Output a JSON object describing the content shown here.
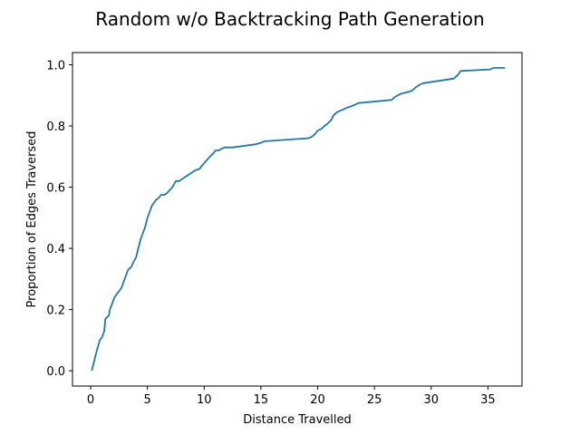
{
  "chart_data": {
    "type": "line",
    "title": "Random w/o Backtracking Path Generation",
    "xlabel": "Distance Travelled",
    "ylabel": "Proportion of Edges Traversed",
    "xlim": [
      -1.6,
      38.0
    ],
    "ylim": [
      -0.05,
      1.04
    ],
    "xticks": [
      0,
      5,
      10,
      15,
      20,
      25,
      30,
      35
    ],
    "xtick_labels": [
      "0",
      "5",
      "10",
      "15",
      "20",
      "25",
      "30",
      "35"
    ],
    "yticks": [
      0.0,
      0.2,
      0.4,
      0.6,
      0.8,
      1.0
    ],
    "ytick_labels": [
      "0.0",
      "0.2",
      "0.4",
      "0.6",
      "0.8",
      "1.0"
    ],
    "grid": false,
    "legend": "none",
    "series": [
      {
        "color": "#1f77b4",
        "x": [
          0.1,
          0.3,
          0.5,
          0.8,
          1.0,
          1.2,
          1.3,
          1.6,
          1.7,
          1.8,
          2.0,
          2.1,
          2.3,
          2.5,
          2.7,
          3.0,
          3.2,
          3.3,
          3.6,
          3.7,
          4.0,
          4.2,
          4.4,
          4.6,
          4.8,
          5.0,
          5.2,
          5.4,
          5.6,
          5.8,
          6.0,
          6.2,
          6.5,
          6.7,
          7.2,
          7.5,
          7.8,
          8.0,
          8.2,
          9.0,
          9.2,
          9.6,
          9.8,
          10.5,
          10.8,
          11.0,
          11.3,
          11.5,
          11.8,
          12.5,
          14.5,
          15.0,
          15.3,
          19.2,
          19.5,
          19.8,
          20.0,
          20.3,
          20.6,
          20.8,
          21.2,
          21.4,
          21.7,
          22.0,
          22.3,
          22.6,
          23.0,
          23.3,
          23.6,
          26.5,
          26.8,
          27.3,
          28.3,
          28.6,
          29.0,
          29.3,
          32.0,
          32.3,
          32.6,
          35.2,
          35.5,
          36.5
        ],
        "y": [
          0.0,
          0.03,
          0.06,
          0.1,
          0.11,
          0.13,
          0.17,
          0.18,
          0.2,
          0.21,
          0.23,
          0.24,
          0.25,
          0.26,
          0.27,
          0.3,
          0.32,
          0.33,
          0.34,
          0.35,
          0.37,
          0.4,
          0.43,
          0.45,
          0.47,
          0.5,
          0.52,
          0.54,
          0.55,
          0.56,
          0.565,
          0.575,
          0.575,
          0.58,
          0.6,
          0.62,
          0.62,
          0.625,
          0.63,
          0.65,
          0.655,
          0.66,
          0.67,
          0.7,
          0.71,
          0.72,
          0.72,
          0.725,
          0.73,
          0.73,
          0.74,
          0.745,
          0.75,
          0.76,
          0.765,
          0.775,
          0.785,
          0.79,
          0.8,
          0.805,
          0.82,
          0.835,
          0.845,
          0.85,
          0.855,
          0.86,
          0.865,
          0.87,
          0.875,
          0.885,
          0.895,
          0.905,
          0.915,
          0.925,
          0.935,
          0.94,
          0.955,
          0.965,
          0.98,
          0.985,
          0.99,
          0.99
        ]
      }
    ]
  }
}
